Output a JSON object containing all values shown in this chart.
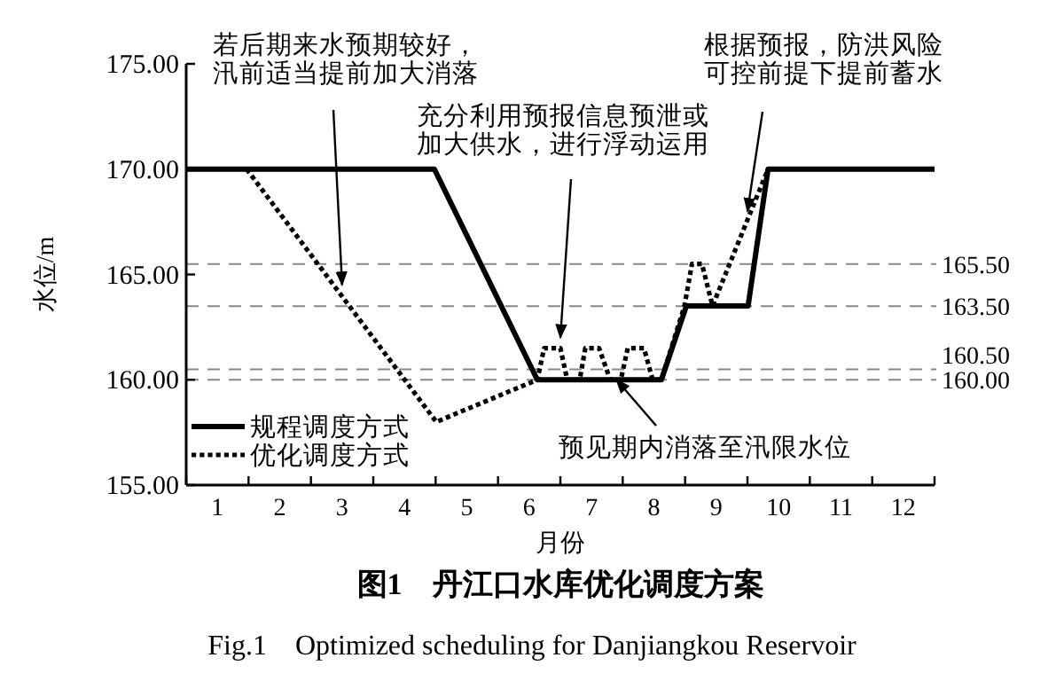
{
  "chart_data": {
    "type": "line",
    "title": "图1　丹江口水库优化调度方案",
    "subtitle": "Fig.1　Optimized scheduling for Danjiangkou Reservoir",
    "xlabel": "月份",
    "ylabel": "水位/m",
    "xlim": [
      0,
      12
    ],
    "ylim": [
      155,
      175
    ],
    "xticks": [
      {
        "value": 0,
        "label": null
      },
      {
        "value": 1,
        "label": null
      },
      {
        "value": 2,
        "label": null
      },
      {
        "value": 3,
        "label": null
      },
      {
        "value": 4,
        "label": null
      },
      {
        "value": 5,
        "label": null
      },
      {
        "value": 6,
        "label": null
      },
      {
        "value": 7,
        "label": null
      },
      {
        "value": 8,
        "label": null
      },
      {
        "value": 9,
        "label": null
      },
      {
        "value": 10,
        "label": null
      },
      {
        "value": 11,
        "label": null
      },
      {
        "value": 12,
        "label": null
      },
      {
        "value": 0.5,
        "label": "1"
      },
      {
        "value": 1.5,
        "label": "2"
      },
      {
        "value": 2.5,
        "label": "3"
      },
      {
        "value": 3.5,
        "label": "4"
      },
      {
        "value": 4.5,
        "label": "5"
      },
      {
        "value": 5.5,
        "label": "6"
      },
      {
        "value": 6.5,
        "label": "7"
      },
      {
        "value": 7.5,
        "label": "8"
      },
      {
        "value": 8.5,
        "label": "9"
      },
      {
        "value": 9.5,
        "label": "10"
      },
      {
        "value": 10.5,
        "label": "11"
      },
      {
        "value": 11.5,
        "label": "12"
      }
    ],
    "yticks": [
      {
        "value": 155,
        "label": "155.00"
      },
      {
        "value": 160,
        "label": "160.00"
      },
      {
        "value": 165,
        "label": "165.00"
      },
      {
        "value": 170,
        "label": "170.00"
      },
      {
        "value": 175,
        "label": "175.00"
      }
    ],
    "series": [
      {
        "name": "规程调度方式",
        "color": "#000000",
        "line_style": "solid",
        "x": [
          0,
          3.98,
          5.63,
          7.62,
          8.02,
          9.01,
          9.33,
          12
        ],
        "values": [
          170,
          170,
          160,
          160,
          163.5,
          163.5,
          170,
          170
        ]
      },
      {
        "name": "优化调度方式",
        "color": "#000000",
        "line_style": "dotted",
        "x": [
          0.97,
          4.01,
          5.63,
          5.74,
          6.0,
          6.11,
          6.31,
          6.4,
          6.62,
          6.8,
          6.97,
          7.08,
          7.34,
          7.48,
          7.62,
          7.99,
          8.11,
          8.27,
          8.44,
          9.33
        ],
        "values": [
          170,
          158,
          160,
          161.5,
          161.5,
          160,
          160,
          161.5,
          161.5,
          160,
          160,
          161.5,
          161.5,
          160,
          160,
          163.5,
          165.5,
          165.5,
          163.5,
          170
        ]
      }
    ],
    "ref_lines": [
      {
        "axis": "y",
        "value": 165.5,
        "label": "165.50",
        "color": "#888888",
        "line_style": "dashed"
      },
      {
        "axis": "y",
        "value": 163.5,
        "label": "163.50",
        "color": "#888888",
        "line_style": "dashed"
      },
      {
        "axis": "y",
        "value": 160.5,
        "label": "160.50",
        "color": "#888888",
        "line_style": "dashed"
      },
      {
        "axis": "y",
        "value": 160,
        "label": "160.00",
        "color": "#888888",
        "line_style": "dashed"
      }
    ],
    "annotations": [
      {
        "text": "若后期来水预期较好，汛前适当提前加大消落",
        "x": 2.5,
        "y": 164.5
      },
      {
        "text": "充分利用预报信息预泄或加大供水，进行浮动运用",
        "x": 6.0,
        "y": 162
      },
      {
        "text": "根据预报，防洪风险可控前提下提前蓄水",
        "x": 9.0,
        "y": 168
      },
      {
        "text": "预见期内消落至汛限水位",
        "x": 6.9,
        "y": 160
      }
    ],
    "legend": "bottom left",
    "grid": false,
    "marker": "none"
  }
}
